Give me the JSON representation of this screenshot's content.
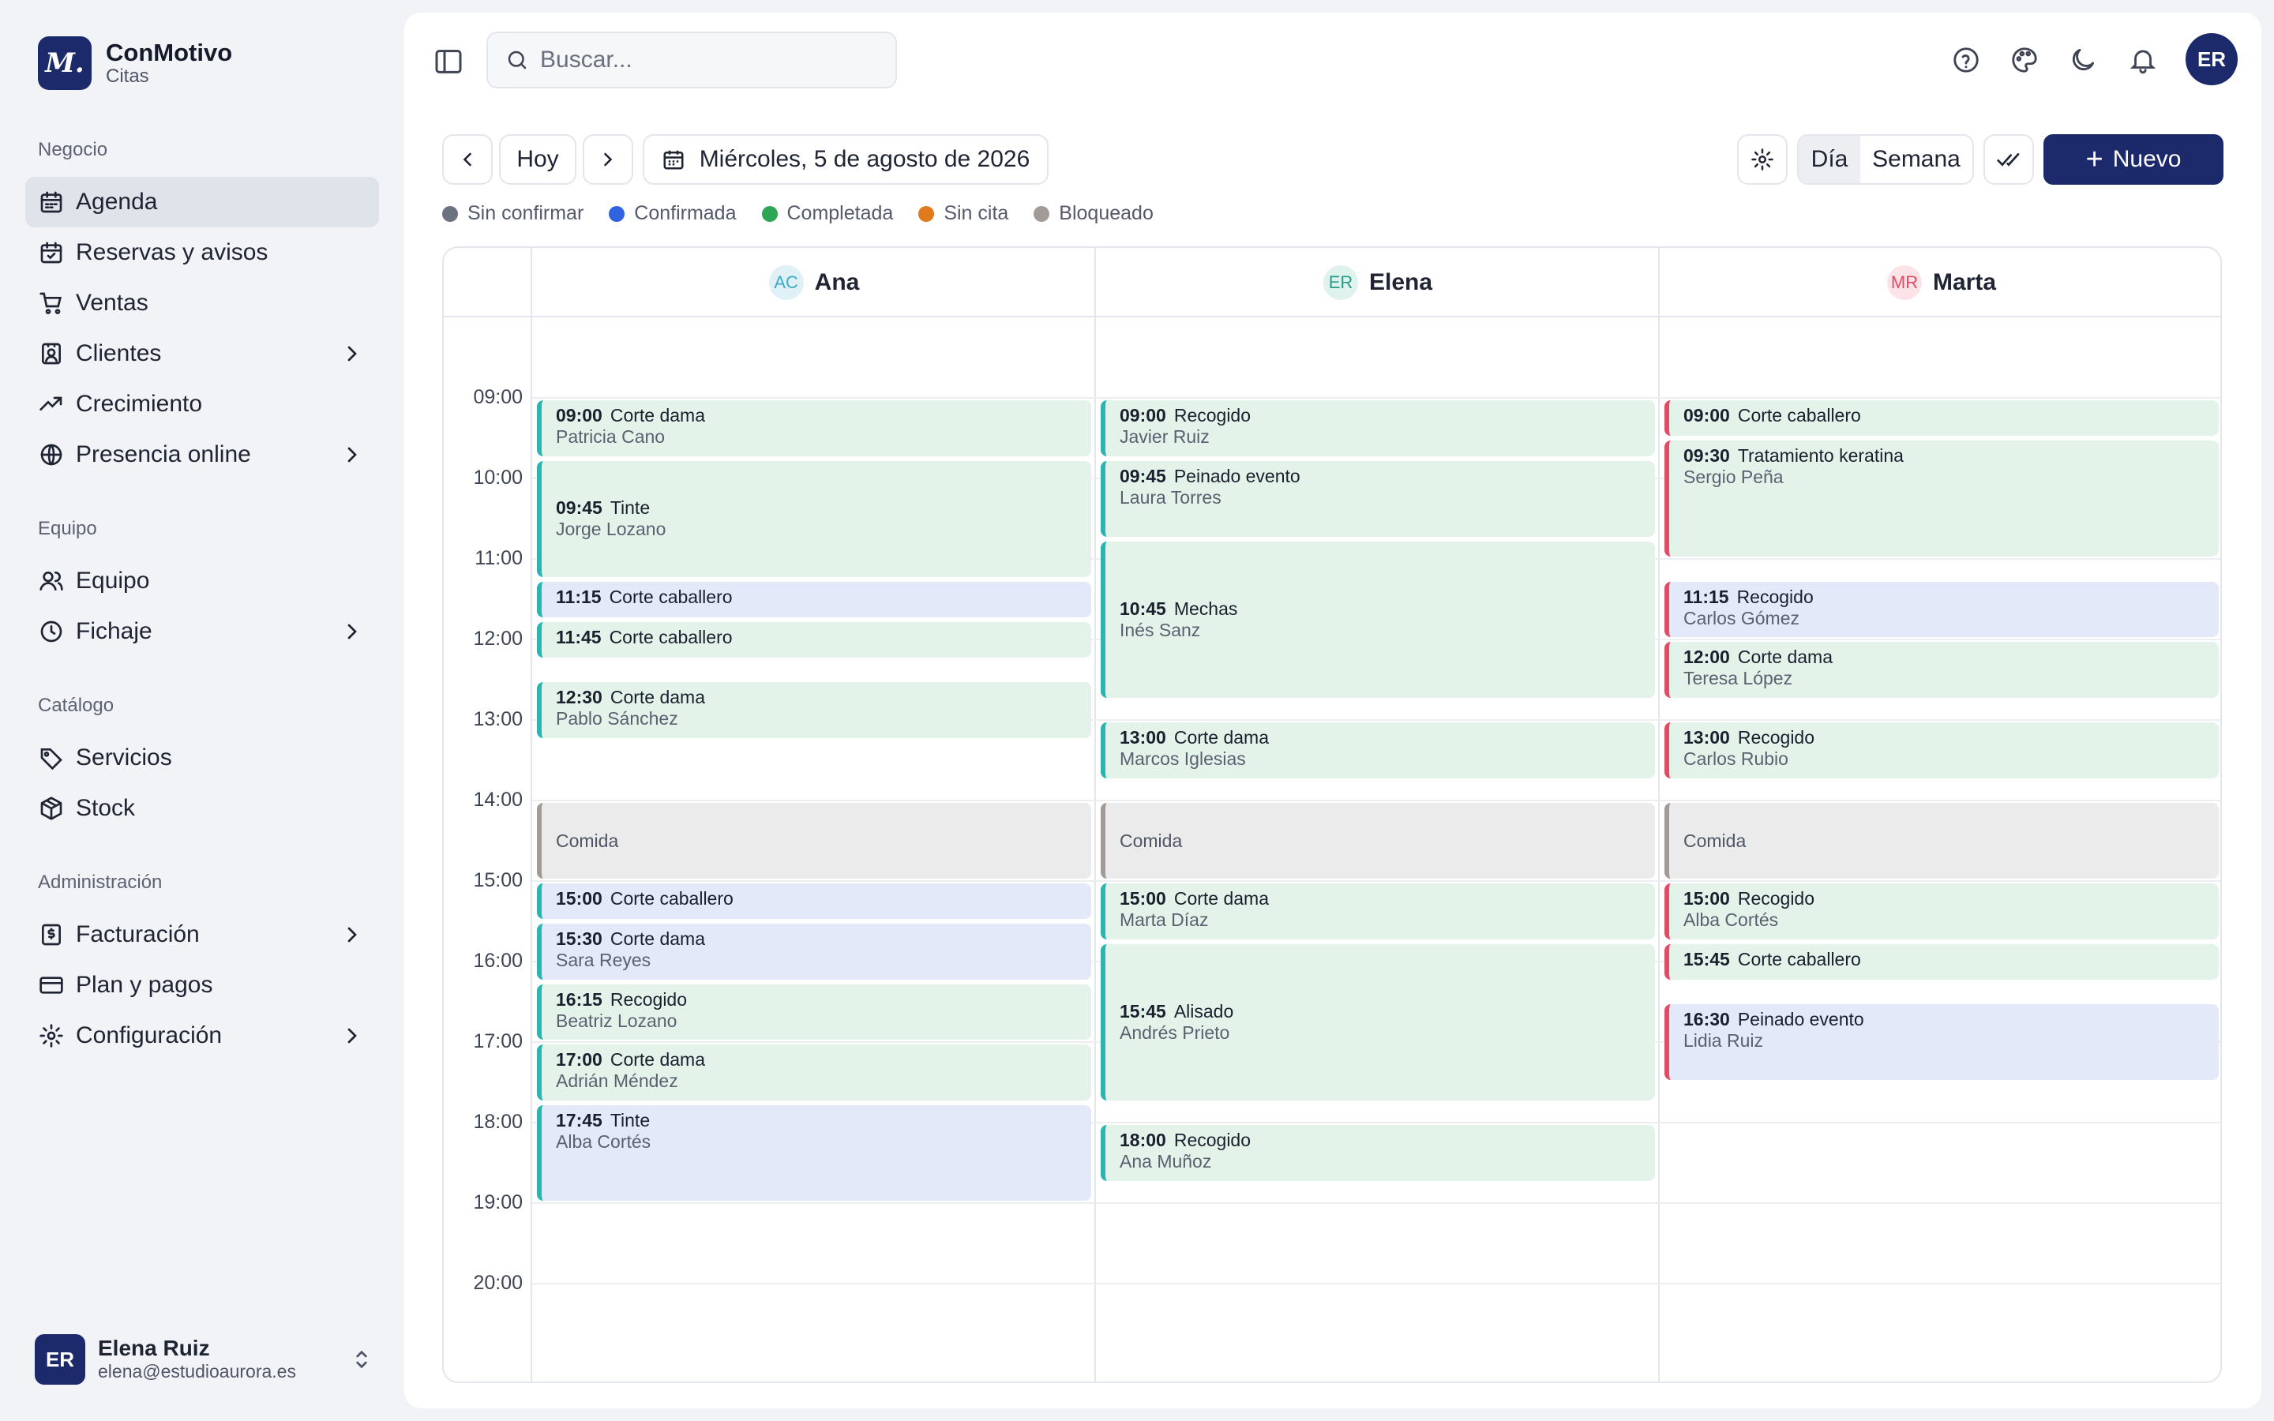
{
  "brand": {
    "logo_text": "M.",
    "name": "ConMotivo",
    "subtitle": "Citas"
  },
  "sidebar": {
    "sections": [
      "Negocio",
      "Equipo",
      "Catálogo",
      "Administración"
    ],
    "items": [
      {
        "label": "Agenda",
        "icon": "calendar-icon",
        "active": true
      },
      {
        "label": "Reservas y avisos",
        "icon": "calendar-check-icon"
      },
      {
        "label": "Ventas",
        "icon": "cart-icon"
      },
      {
        "label": "Clientes",
        "icon": "contact-icon",
        "has_children": true
      },
      {
        "label": "Crecimiento",
        "icon": "trend-up-icon"
      },
      {
        "label": "Presencia online",
        "icon": "globe-icon",
        "has_children": true
      },
      {
        "label": "Equipo",
        "icon": "users-icon"
      },
      {
        "label": "Fichaje",
        "icon": "clock-icon",
        "has_children": true
      },
      {
        "label": "Servicios",
        "icon": "tag-icon"
      },
      {
        "label": "Stock",
        "icon": "box-icon"
      },
      {
        "label": "Facturación",
        "icon": "invoice-icon",
        "has_children": true
      },
      {
        "label": "Plan y pagos",
        "icon": "card-icon"
      },
      {
        "label": "Configuración",
        "icon": "gear-icon",
        "has_children": true
      }
    ]
  },
  "user": {
    "initials": "ER",
    "name": "Elena Ruiz",
    "email": "elena@estudioaurora.es"
  },
  "header": {
    "search_placeholder": "Buscar...",
    "avatar_initials": "ER"
  },
  "toolbar": {
    "today_label": "Hoy",
    "date_label": "Miércoles, 5 de agosto de 2026",
    "view_day": "Día",
    "view_week": "Semana",
    "new_label": "Nuevo",
    "active_view": "Día"
  },
  "legend": [
    {
      "label": "Sin confirmar",
      "color": "#6b7280"
    },
    {
      "label": "Confirmada",
      "color": "#2f63e0"
    },
    {
      "label": "Completada",
      "color": "#2ea655"
    },
    {
      "label": "Sin cita",
      "color": "#e07a1a"
    },
    {
      "label": "Bloqueado",
      "color": "#a29a96"
    }
  ],
  "colors": {
    "brand": "#1c2a6b",
    "ana_accent": "#2bb5b0",
    "marta_accent": "#e34a64",
    "completed_bg": "#e4f3ea",
    "confirmed_bg": "#e4e9fa",
    "blocked_bg": "#ecebeb"
  },
  "calendar": {
    "hours": [
      "09:00",
      "10:00",
      "11:00",
      "12:00",
      "13:00",
      "14:00",
      "15:00",
      "16:00",
      "17:00",
      "18:00",
      "19:00",
      "20:00"
    ],
    "staff": [
      {
        "initials": "AC",
        "name": "Ana",
        "avatar_bg": "#dff1f6",
        "avatar_fg": "#3fa9c6",
        "accent": "#2bb5b0",
        "events": [
          {
            "start": "09:00",
            "end": "09:45",
            "time": "09:00",
            "service": "Corte dama",
            "client": "Patricia Cano",
            "status": "green"
          },
          {
            "start": "09:45",
            "end": "11:15",
            "time": "09:45",
            "service": "Tinte",
            "client": "Jorge Lozano",
            "status": "green",
            "center": true
          },
          {
            "start": "11:15",
            "end": "11:45",
            "time": "11:15",
            "service": "Corte caballero",
            "client": "",
            "status": "blue"
          },
          {
            "start": "11:45",
            "end": "12:15",
            "time": "11:45",
            "service": "Corte caballero",
            "client": "",
            "status": "green"
          },
          {
            "start": "12:30",
            "end": "13:15",
            "time": "12:30",
            "service": "Corte dama",
            "client": "Pablo Sánchez",
            "status": "green"
          },
          {
            "start": "14:00",
            "end": "15:00",
            "time": "",
            "service": "Comida",
            "client": "",
            "status": "gray"
          },
          {
            "start": "15:00",
            "end": "15:30",
            "time": "15:00",
            "service": "Corte caballero",
            "client": "",
            "status": "blue"
          },
          {
            "start": "15:30",
            "end": "16:15",
            "time": "15:30",
            "service": "Corte dama",
            "client": "Sara Reyes",
            "status": "blue"
          },
          {
            "start": "16:15",
            "end": "17:00",
            "time": "16:15",
            "service": "Recogido",
            "client": "Beatriz Lozano",
            "status": "green"
          },
          {
            "start": "17:00",
            "end": "17:45",
            "time": "17:00",
            "service": "Corte dama",
            "client": "Adrián Méndez",
            "status": "green"
          },
          {
            "start": "17:45",
            "end": "19:00",
            "time": "17:45",
            "service": "Tinte",
            "client": "Alba Cortés",
            "status": "blue"
          }
        ]
      },
      {
        "initials": "ER",
        "name": "Elena",
        "avatar_bg": "#dff2ee",
        "avatar_fg": "#2a9d8a",
        "accent": "#2bb5b0",
        "events": [
          {
            "start": "09:00",
            "end": "09:45",
            "time": "09:00",
            "service": "Recogido",
            "client": "Javier Ruiz",
            "status": "green"
          },
          {
            "start": "09:45",
            "end": "10:45",
            "time": "09:45",
            "service": "Peinado evento",
            "client": "Laura Torres",
            "status": "green"
          },
          {
            "start": "10:45",
            "end": "12:45",
            "time": "10:45",
            "service": "Mechas",
            "client": "Inés Sanz",
            "status": "green",
            "center": true
          },
          {
            "start": "13:00",
            "end": "13:45",
            "time": "13:00",
            "service": "Corte dama",
            "client": "Marcos Iglesias",
            "status": "green"
          },
          {
            "start": "14:00",
            "end": "15:00",
            "time": "",
            "service": "Comida",
            "client": "",
            "status": "gray"
          },
          {
            "start": "15:00",
            "end": "15:45",
            "time": "15:00",
            "service": "Corte dama",
            "client": "Marta Díaz",
            "status": "green"
          },
          {
            "start": "15:45",
            "end": "17:45",
            "time": "15:45",
            "service": "Alisado",
            "client": "Andrés Prieto",
            "status": "green",
            "center": true
          },
          {
            "start": "18:00",
            "end": "18:45",
            "time": "18:00",
            "service": "Recogido",
            "client": "Ana Muñoz",
            "status": "green"
          }
        ]
      },
      {
        "initials": "MR",
        "name": "Marta",
        "avatar_bg": "#fbe3e7",
        "avatar_fg": "#e34a64",
        "accent": "#e34a64",
        "events": [
          {
            "start": "09:00",
            "end": "09:30",
            "time": "09:00",
            "service": "Corte caballero",
            "client": "",
            "status": "green"
          },
          {
            "start": "09:30",
            "end": "11:00",
            "time": "09:30",
            "service": "Tratamiento keratina",
            "client": "Sergio Peña",
            "status": "green"
          },
          {
            "start": "11:15",
            "end": "12:00",
            "time": "11:15",
            "service": "Recogido",
            "client": "Carlos Gómez",
            "status": "blue"
          },
          {
            "start": "12:00",
            "end": "12:45",
            "time": "12:00",
            "service": "Corte dama",
            "client": "Teresa López",
            "status": "green"
          },
          {
            "start": "13:00",
            "end": "13:45",
            "time": "13:00",
            "service": "Recogido",
            "client": "Carlos Rubio",
            "status": "green"
          },
          {
            "start": "14:00",
            "end": "15:00",
            "time": "",
            "service": "Comida",
            "client": "",
            "status": "gray"
          },
          {
            "start": "15:00",
            "end": "15:45",
            "time": "15:00",
            "service": "Recogido",
            "client": "Alba Cortés",
            "status": "green"
          },
          {
            "start": "15:45",
            "end": "16:15",
            "time": "15:45",
            "service": "Corte caballero",
            "client": "",
            "status": "green"
          },
          {
            "start": "16:30",
            "end": "17:30",
            "time": "16:30",
            "service": "Peinado evento",
            "client": "Lidia Ruiz",
            "status": "blue"
          }
        ]
      }
    ]
  }
}
